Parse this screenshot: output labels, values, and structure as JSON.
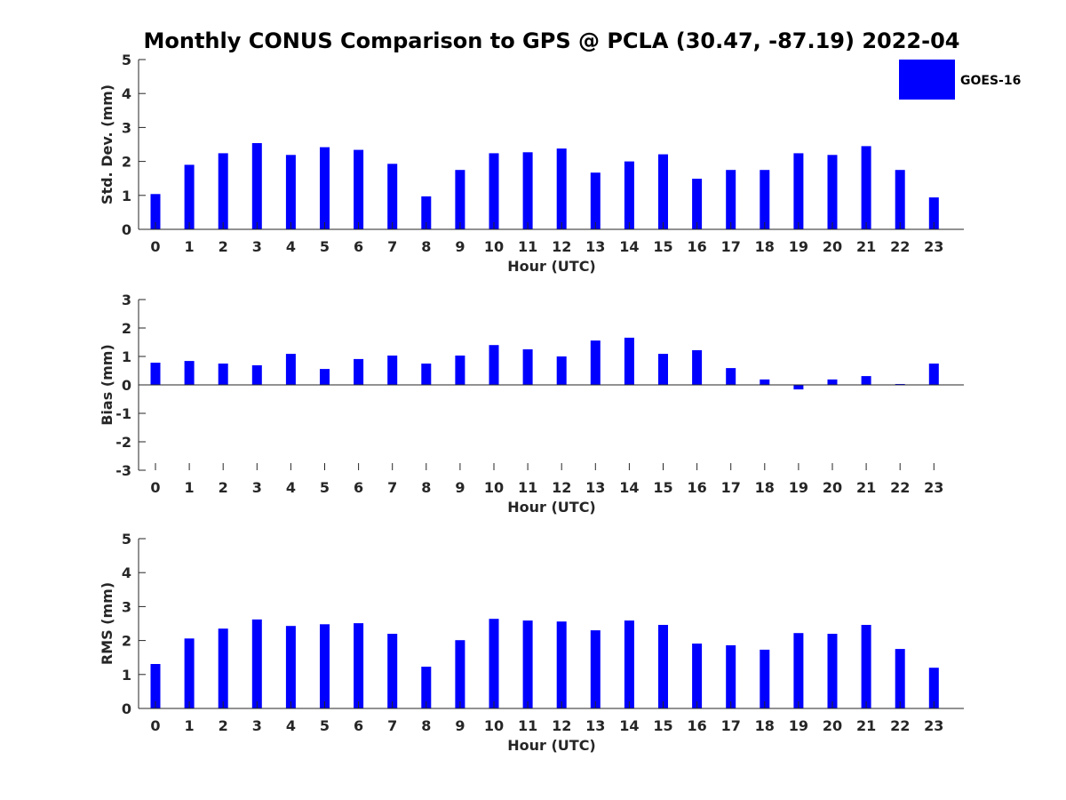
{
  "figure": {
    "title": "Monthly CONUS Comparison to GPS @ PCLA (30.47, -87.19) 2022-04"
  },
  "legend": {
    "label": "GOES-16",
    "color": "#0000ff",
    "placement": "top-right"
  },
  "chart_data": [
    {
      "type": "bar",
      "id": "stddev",
      "xlabel": "Hour (UTC)",
      "ylabel": "Std. Dev. (mm)",
      "ylim": [
        0,
        5
      ],
      "yticks": [
        "0",
        "1",
        "2",
        "3",
        "4",
        "5"
      ],
      "categories": [
        "0",
        "1",
        "2",
        "3",
        "4",
        "5",
        "6",
        "7",
        "8",
        "9",
        "10",
        "11",
        "12",
        "13",
        "14",
        "15",
        "16",
        "17",
        "18",
        "19",
        "20",
        "21",
        "22",
        "23"
      ],
      "series": [
        {
          "name": "GOES-16",
          "color": "#0000ff",
          "values": [
            1.04,
            1.9,
            2.24,
            2.54,
            2.19,
            2.42,
            2.34,
            1.93,
            0.97,
            1.75,
            2.24,
            2.27,
            2.38,
            1.67,
            2.0,
            2.21,
            1.49,
            1.75,
            1.75,
            2.24,
            2.19,
            2.45,
            1.75,
            0.94
          ]
        }
      ]
    },
    {
      "type": "bar",
      "id": "bias",
      "xlabel": "Hour (UTC)",
      "ylabel": "Bias (mm)",
      "ylim": [
        -3,
        3
      ],
      "yticks": [
        "-3",
        "-2",
        "-1",
        "0",
        "1",
        "2",
        "3"
      ],
      "categories": [
        "0",
        "1",
        "2",
        "3",
        "4",
        "5",
        "6",
        "7",
        "8",
        "9",
        "10",
        "11",
        "12",
        "13",
        "14",
        "15",
        "16",
        "17",
        "18",
        "19",
        "20",
        "21",
        "22",
        "23"
      ],
      "series": [
        {
          "name": "GOES-16",
          "color": "#0000ff",
          "values": [
            0.78,
            0.84,
            0.75,
            0.69,
            1.09,
            0.56,
            0.91,
            1.03,
            0.75,
            1.03,
            1.4,
            1.25,
            1.0,
            1.56,
            1.66,
            1.09,
            1.22,
            0.59,
            0.19,
            -0.16,
            0.19,
            0.31,
            0.03,
            0.75
          ]
        }
      ]
    },
    {
      "type": "bar",
      "id": "rms",
      "xlabel": "Hour (UTC)",
      "ylabel": "RMS (mm)",
      "ylim": [
        0,
        5
      ],
      "yticks": [
        "0",
        "1",
        "2",
        "3",
        "4",
        "5"
      ],
      "categories": [
        "0",
        "1",
        "2",
        "3",
        "4",
        "5",
        "6",
        "7",
        "8",
        "9",
        "10",
        "11",
        "12",
        "13",
        "14",
        "15",
        "16",
        "17",
        "18",
        "19",
        "20",
        "21",
        "22",
        "23"
      ],
      "series": [
        {
          "name": "GOES-16",
          "color": "#0000ff",
          "values": [
            1.31,
            2.06,
            2.35,
            2.62,
            2.43,
            2.48,
            2.51,
            2.2,
            1.23,
            2.01,
            2.64,
            2.59,
            2.56,
            2.3,
            2.59,
            2.46,
            1.91,
            1.86,
            1.73,
            2.22,
            2.2,
            2.46,
            1.75,
            1.2
          ]
        }
      ]
    }
  ]
}
